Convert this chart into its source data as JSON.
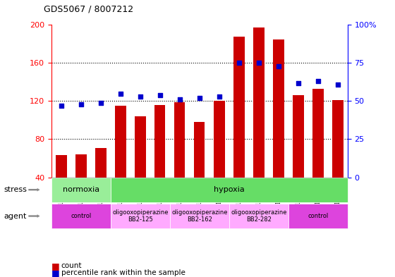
{
  "title": "GDS5067 / 8007212",
  "samples": [
    "GSM1169207",
    "GSM1169208",
    "GSM1169209",
    "GSM1169213",
    "GSM1169214",
    "GSM1169215",
    "GSM1169216",
    "GSM1169217",
    "GSM1169218",
    "GSM1169219",
    "GSM1169220",
    "GSM1169221",
    "GSM1169210",
    "GSM1169211",
    "GSM1169212"
  ],
  "counts": [
    63,
    64,
    71,
    115,
    104,
    116,
    119,
    98,
    120,
    188,
    197,
    185,
    126,
    133,
    121
  ],
  "percentiles": [
    47,
    48,
    49,
    55,
    53,
    54,
    51,
    52,
    53,
    75,
    75,
    73,
    62,
    63,
    61
  ],
  "ylim_left": [
    40,
    200
  ],
  "ylim_right": [
    0,
    100
  ],
  "yticks_left": [
    40,
    80,
    120,
    160,
    200
  ],
  "yticks_right": [
    0,
    25,
    50,
    75,
    100
  ],
  "bar_color": "#cc0000",
  "dot_color": "#0000cc",
  "plot_bg": "#ffffff",
  "normoxia_color": "#99ee99",
  "hypoxia_color": "#66dd66",
  "control_color": "#dd44dd",
  "oligo_color": "#ffaaff",
  "stress_label": "stress",
  "agent_label": "agent",
  "legend_count": "count",
  "legend_pct": "percentile rank within the sample",
  "agent_groups": [
    [
      0,
      3,
      "#dd44dd",
      "control"
    ],
    [
      3,
      6,
      "#ffaaff",
      "oligooxopiperazine\nBB2-125"
    ],
    [
      6,
      9,
      "#ffaaff",
      "oligooxopiperazine\nBB2-162"
    ],
    [
      9,
      12,
      "#ffaaff",
      "oligooxopiperazine\nBB2-282"
    ],
    [
      12,
      15,
      "#dd44dd",
      "control"
    ]
  ]
}
